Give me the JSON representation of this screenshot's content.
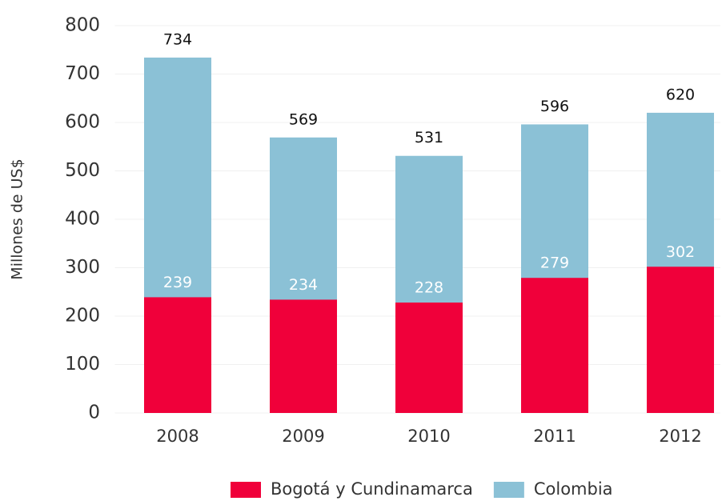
{
  "chart_data": {
    "type": "bar",
    "barmode": "overlay",
    "y_label": "Millones de US$",
    "categories": [
      "2008",
      "2009",
      "2010",
      "2011",
      "2012"
    ],
    "series": [
      {
        "name": "Colombia",
        "color": "#8bc1d6",
        "values": [
          734,
          569,
          531,
          596,
          620
        ]
      },
      {
        "name": "Bogotá y Cundinamarca",
        "color": "#f0003a",
        "values": [
          239,
          234,
          228,
          279,
          302
        ]
      }
    ],
    "ylim": [
      0,
      800
    ],
    "yticks": [
      0,
      100,
      200,
      300,
      400,
      500,
      600,
      700,
      800
    ],
    "grid": true
  }
}
